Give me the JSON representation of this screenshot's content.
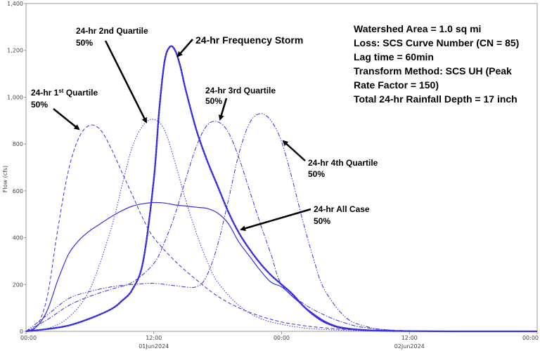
{
  "chart_data": {
    "type": "line",
    "ylabel": "Flow (cfs)",
    "ylim": [
      0,
      1400
    ],
    "xlim": [
      0,
      48
    ],
    "y_ticks": [
      "0",
      "200",
      "400",
      "600",
      "800",
      "1,000",
      "1,200",
      "1,400"
    ],
    "x_ticks": [
      {
        "hour": 0,
        "time": "00:00",
        "date": ""
      },
      {
        "hour": 12,
        "time": "12:00",
        "date": "01Jun2024"
      },
      {
        "hour": 24,
        "time": "00:00",
        "date": ""
      },
      {
        "hour": 36,
        "time": "12:00",
        "date": "02Jun2024"
      },
      {
        "hour": 48,
        "time": "00:00",
        "date": ""
      }
    ],
    "grid": false,
    "series": [
      {
        "name": "24-hr Frequency Storm",
        "style": "bold-dotted",
        "x": [
          0,
          2,
          4,
          6,
          8,
          9,
          10,
          11,
          12,
          12.5,
          13,
          13.5,
          14,
          14.5,
          15,
          16,
          17,
          18,
          19,
          20,
          21,
          22,
          23,
          24,
          25,
          26,
          27,
          28,
          29,
          30,
          32,
          34,
          36,
          40,
          48
        ],
        "y": [
          0,
          10,
          25,
          55,
          95,
          130,
          180,
          300,
          650,
          940,
          1150,
          1215,
          1200,
          1130,
          1030,
          860,
          730,
          620,
          510,
          420,
          350,
          290,
          240,
          200,
          160,
          110,
          70,
          40,
          22,
          12,
          5,
          2,
          1,
          0,
          0
        ]
      },
      {
        "name": "24-hr 1st Quartile",
        "style": "dashed",
        "x": [
          0,
          1,
          2,
          3,
          4,
          5,
          6,
          7,
          8,
          9,
          10,
          11,
          12,
          14,
          16,
          18,
          20,
          22,
          24,
          26,
          28,
          30,
          34,
          48
        ],
        "y": [
          0,
          20,
          150,
          440,
          690,
          830,
          880,
          860,
          780,
          680,
          580,
          480,
          400,
          300,
          220,
          150,
          100,
          65,
          40,
          25,
          15,
          8,
          2,
          0
        ]
      },
      {
        "name": "24-hr 2nd Quartile",
        "style": "dotted",
        "x": [
          0,
          2,
          4,
          6,
          8,
          9,
          10,
          11,
          12,
          13,
          14,
          15,
          16,
          17,
          18,
          20,
          22,
          24,
          26,
          28,
          30,
          32,
          36,
          48
        ],
        "y": [
          0,
          12,
          60,
          180,
          440,
          620,
          790,
          880,
          905,
          860,
          720,
          560,
          420,
          300,
          210,
          110,
          55,
          30,
          15,
          8,
          4,
          2,
          0,
          0
        ]
      },
      {
        "name": "24-hr 3rd Quartile",
        "style": "dash-dot",
        "x": [
          0,
          2,
          4,
          6,
          8,
          10,
          12,
          13,
          14,
          15,
          16,
          17,
          18,
          19,
          20,
          21,
          22,
          23,
          24,
          26,
          28,
          30,
          32,
          36,
          48
        ],
        "y": [
          0,
          50,
          110,
          150,
          180,
          210,
          290,
          380,
          500,
          650,
          790,
          880,
          895,
          850,
          740,
          600,
          460,
          330,
          200,
          120,
          70,
          35,
          15,
          3,
          0
        ]
      },
      {
        "name": "24-hr 4th Quartile",
        "style": "dash-dot-dot",
        "x": [
          0,
          2,
          4,
          6,
          8,
          10,
          12,
          14,
          16,
          17,
          18,
          19,
          20,
          21,
          22,
          23,
          24,
          25,
          26,
          27,
          28,
          30,
          32,
          34,
          38,
          48
        ],
        "y": [
          0,
          70,
          140,
          170,
          190,
          200,
          205,
          195,
          190,
          240,
          370,
          560,
          760,
          890,
          930,
          900,
          810,
          650,
          470,
          310,
          180,
          60,
          20,
          6,
          1,
          0
        ]
      },
      {
        "name": "24-hr All Case",
        "style": "solid",
        "x": [
          0,
          1,
          2,
          3,
          4,
          5,
          6,
          7,
          8,
          9,
          10,
          11,
          12,
          13,
          14,
          15,
          16,
          17,
          18,
          19,
          20,
          21,
          22,
          23,
          24,
          25,
          26,
          27,
          28,
          29,
          30,
          32,
          34,
          36,
          40,
          48
        ],
        "y": [
          0,
          20,
          90,
          220,
          330,
          390,
          430,
          460,
          490,
          515,
          535,
          545,
          550,
          548,
          540,
          535,
          530,
          525,
          505,
          460,
          380,
          320,
          260,
          210,
          190,
          150,
          110,
          75,
          45,
          25,
          15,
          5,
          2,
          1,
          0,
          0
        ]
      }
    ]
  },
  "annotations": {
    "first_quartile": {
      "line1_prefix": "24-hr 1",
      "line1_sup": "st",
      "line1_suffix": " Quartile",
      "line2": "50%"
    },
    "second_quartile": {
      "line1": "24-hr 2nd Quartile",
      "line2": "50%"
    },
    "frequency_storm": {
      "line1": "24-hr Frequency Storm"
    },
    "third_quartile": {
      "line1": "24-hr 3rd Quartile",
      "line2": "50%"
    },
    "fourth_quartile": {
      "line1": "24-hr 4th Quartile",
      "line2": "50%"
    },
    "all_case": {
      "line1": "24-hr All Case",
      "line2": "50%"
    }
  },
  "info_box": {
    "lines": [
      "Watershed Area = 1.0 sq mi",
      "Loss: SCS Curve Number (CN = 85)",
      "Lag time = 60min",
      "Transform Method: SCS UH (Peak",
      "Rate Factor = 150)",
      "Total 24-hr Rainfall Depth = 17 inch"
    ]
  },
  "colors": {
    "series": "#3a2ee0",
    "axis": "#999999",
    "arrow": "#000000"
  }
}
